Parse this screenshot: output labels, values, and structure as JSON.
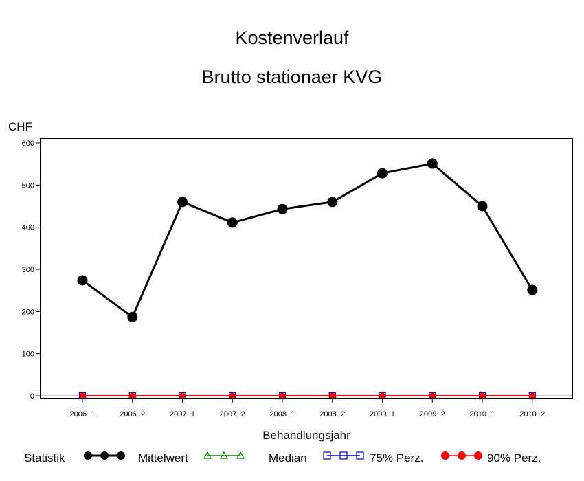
{
  "chart_data": {
    "type": "line",
    "title": "Kostenverlauf",
    "subtitle": "Brutto stationaer KVG",
    "xlabel": "Behandlungsjahr",
    "ylabel": "CHF",
    "ylim": [
      0,
      600
    ],
    "yticks": [
      "0",
      "100",
      "200",
      "300",
      "400",
      "500",
      "600"
    ],
    "categories": [
      "2006−1",
      "2006−2",
      "2007−1",
      "2007−2",
      "2008−1",
      "2008−2",
      "2009−1",
      "2009−2",
      "2010−1",
      "2010−2"
    ],
    "series": [
      {
        "name": "Mittelwert",
        "color": "#000000",
        "marker": "filled-circle",
        "values": [
          274,
          187,
          460,
          411,
          443,
          460,
          528,
          551,
          450,
          251
        ]
      },
      {
        "name": "Median",
        "color": "#008000",
        "marker": "open-triangle",
        "values": [
          0,
          0,
          0,
          0,
          0,
          0,
          0,
          0,
          0,
          0
        ]
      },
      {
        "name": "75% Perz.",
        "color": "#0000cc",
        "marker": "open-square",
        "values": [
          0,
          0,
          0,
          0,
          0,
          0,
          0,
          0,
          0,
          0
        ]
      },
      {
        "name": "90% Perz.",
        "color": "#ff0000",
        "marker": "filled-circle",
        "values": [
          0,
          0,
          0,
          0,
          0,
          0,
          0,
          0,
          0,
          0
        ]
      }
    ],
    "legend": {
      "title": "Statistik",
      "position": "bottom"
    },
    "grid": false
  }
}
